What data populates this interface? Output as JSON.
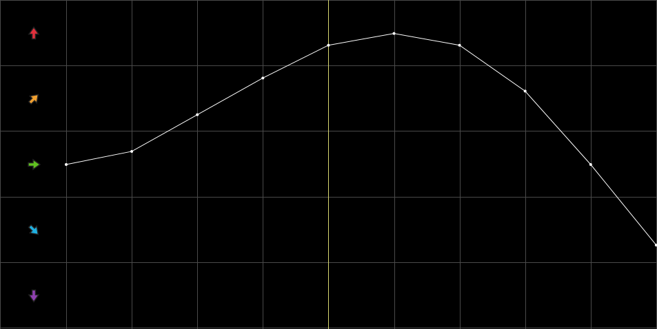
{
  "chart_data": {
    "type": "line",
    "title": "",
    "xlabel": "",
    "ylabel": "",
    "x": [
      0,
      1,
      2,
      3,
      4,
      5,
      6,
      7,
      8,
      9
    ],
    "series": [
      {
        "values": [
          0,
          0.2,
          0.76,
          1.32,
          1.82,
          2.0,
          1.82,
          1.12,
          0,
          -1.23
        ]
      }
    ],
    "xlim": [
      -1,
      9
    ],
    "ylim": [
      -2.5,
      2.5
    ],
    "grid": true,
    "cursor_x": 4,
    "row_icons": [
      {
        "icon": "arrow-up-icon",
        "color": "#e0303c",
        "angle": 0,
        "value": 2
      },
      {
        "icon": "arrow-up-right-icon",
        "color": "#f0a030",
        "angle": 45,
        "value": 1
      },
      {
        "icon": "arrow-right-icon",
        "color": "#60c020",
        "angle": 90,
        "value": 0
      },
      {
        "icon": "arrow-down-right-icon",
        "color": "#20b0e0",
        "angle": 135,
        "value": -1
      },
      {
        "icon": "arrow-down-icon",
        "color": "#9040b0",
        "angle": 180,
        "value": -2
      }
    ],
    "colors": {
      "background": "#000000",
      "grid": "#4a4a4a",
      "line": "#ffffff",
      "cursor": "#d8d870"
    }
  }
}
